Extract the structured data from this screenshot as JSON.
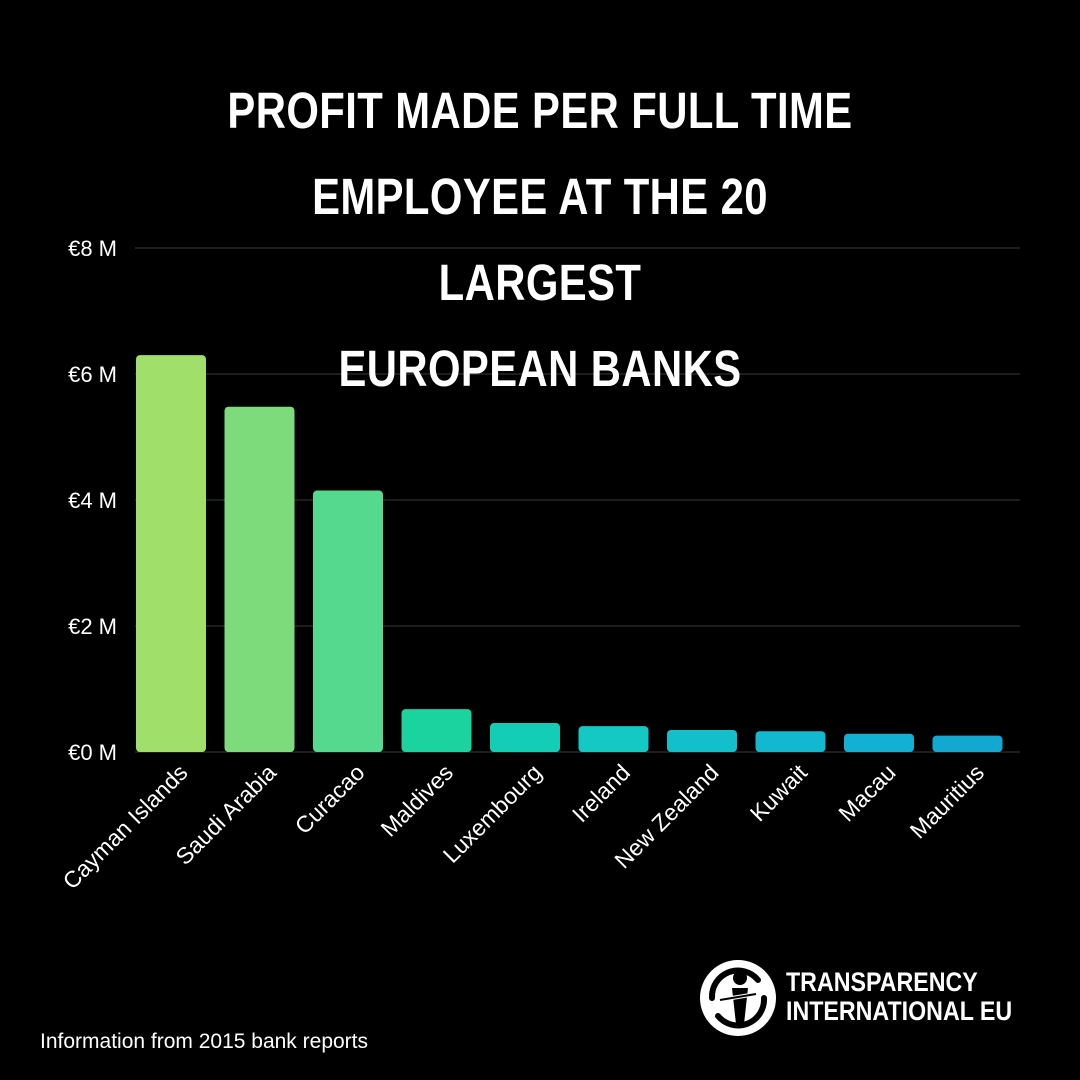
{
  "title_lines": [
    "PROFIT MADE PER FULL TIME",
    "EMPLOYEE AT THE 20 LARGEST",
    "EUROPEAN BANKS"
  ],
  "footnote": "Information from 2015 bank reports",
  "logo": {
    "line1": "TRANSPARENCY",
    "line2": "INTERNATIONAL EU",
    "icon": "transparency-international-logo-icon"
  },
  "colors": {
    "background": "#000000",
    "text": "#ffffff",
    "grid": "#3a3a3a"
  },
  "chart_data": {
    "type": "bar",
    "title": "PROFIT MADE PER FULL TIME EMPLOYEE AT THE 20 LARGEST EUROPEAN BANKS",
    "categories": [
      "Cayman Islands",
      "Saudi Arabia",
      "Curacao",
      "Maldives",
      "Luxembourg",
      "Ireland",
      "New Zealand",
      "Kuwait",
      "Macau",
      "Mauritius"
    ],
    "values": [
      6.3,
      5.48,
      4.15,
      0.68,
      0.46,
      0.41,
      0.35,
      0.33,
      0.29,
      0.26
    ],
    "colors": [
      "#a0e06a",
      "#7edb7c",
      "#54d98e",
      "#1ad39e",
      "#14cdb6",
      "#14c8c4",
      "#12c0cc",
      "#12b8cf",
      "#12b0d2",
      "#12a8d0"
    ],
    "yticks": [
      "€0 M",
      "€2 M",
      "€4 M",
      "€6 M",
      "€8 M"
    ],
    "ytick_values": [
      0,
      2,
      4,
      6,
      8
    ],
    "ylim": [
      0,
      8
    ],
    "unit": "€ M",
    "grid": true,
    "xlabel": "",
    "ylabel": ""
  }
}
